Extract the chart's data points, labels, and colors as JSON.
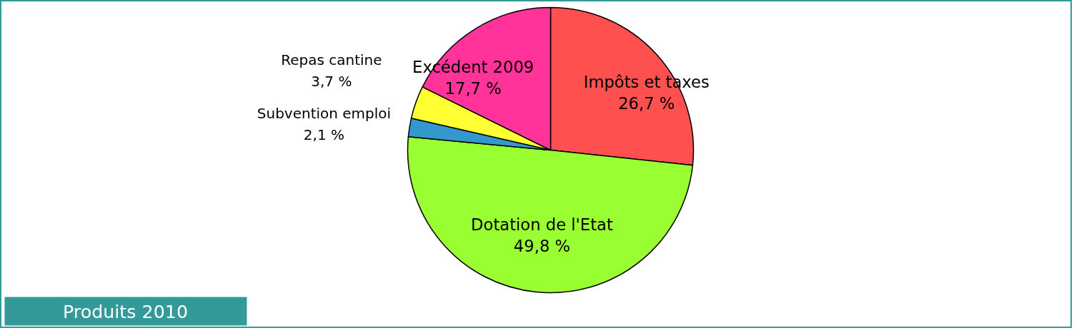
{
  "chart_data": {
    "type": "pie",
    "title": "Produits 2010",
    "categories": [
      "Impôts et taxes",
      "Dotation de l'Etat",
      "Subvention emploi",
      "Repas cantine",
      "Excédent 2009"
    ],
    "values": [
      26.7,
      49.8,
      2.1,
      3.7,
      17.7
    ],
    "value_labels": [
      "26,7 %",
      "49,8 %",
      "2,1 %",
      "3,7 %",
      "17,7 %"
    ],
    "colors": [
      "#ff5050",
      "#99ff33",
      "#3399cc",
      "#ffff33",
      "#ff3399"
    ],
    "legend": false
  }
}
